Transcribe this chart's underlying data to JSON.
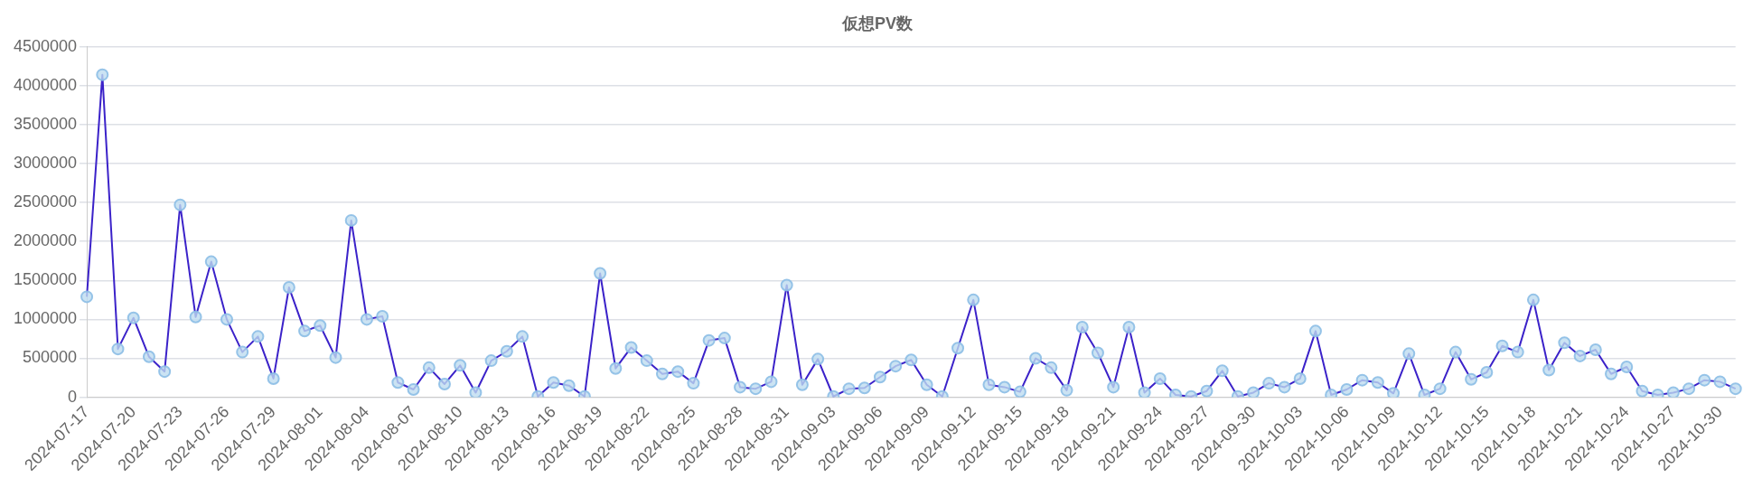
{
  "chart_data": {
    "type": "line",
    "title": "仮想PV数",
    "categories": [
      "2024-07-17",
      null,
      null,
      "2024-07-20",
      null,
      null,
      "2024-07-23",
      null,
      null,
      "2024-07-26",
      null,
      null,
      "2024-07-29",
      null,
      null,
      "2024-08-01",
      null,
      null,
      "2024-08-04",
      null,
      null,
      "2024-08-07",
      null,
      null,
      "2024-08-10",
      null,
      null,
      "2024-08-13",
      null,
      null,
      "2024-08-16",
      null,
      null,
      "2024-08-19",
      null,
      null,
      "2024-08-22",
      null,
      null,
      "2024-08-25",
      null,
      null,
      "2024-08-28",
      null,
      null,
      "2024-08-31",
      null,
      null,
      "2024-09-03",
      null,
      null,
      "2024-09-06",
      null,
      null,
      "2024-09-09",
      null,
      null,
      "2024-09-12",
      null,
      null,
      "2024-09-15",
      null,
      null,
      "2024-09-18",
      null,
      null,
      "2024-09-21",
      null,
      null,
      "2024-09-24",
      null,
      null,
      "2024-09-27",
      null,
      null,
      "2024-09-30",
      null,
      null,
      "2024-10-03",
      null,
      null,
      "2024-10-06",
      null,
      null,
      "2024-10-09",
      null,
      null,
      "2024-10-12",
      null,
      null,
      "2024-10-15",
      null,
      null,
      "2024-10-18",
      null,
      null,
      "2024-10-21",
      null,
      null,
      "2024-10-24",
      null,
      null,
      "2024-10-27",
      null,
      null,
      "2024-10-30",
      null
    ],
    "series": [
      {
        "color": "#3b22c9",
        "values": [
          1290000,
          4140000,
          620000,
          1020000,
          520000,
          330000,
          2470000,
          1030000,
          1740000,
          1000000,
          580000,
          780000,
          240000,
          1410000,
          850000,
          920000,
          510000,
          2270000,
          1000000,
          1040000,
          190000,
          100000,
          380000,
          170000,
          410000,
          60000,
          470000,
          590000,
          780000,
          10000,
          190000,
          150000,
          10000,
          1590000,
          370000,
          640000,
          470000,
          300000,
          330000,
          180000,
          730000,
          760000,
          130000,
          110000,
          200000,
          1440000,
          160000,
          490000,
          10000,
          110000,
          120000,
          260000,
          400000,
          480000,
          160000,
          10000,
          630000,
          1250000,
          160000,
          130000,
          70000,
          500000,
          380000,
          90000,
          900000,
          570000,
          130000,
          900000,
          60000,
          240000,
          30000,
          10000,
          80000,
          340000,
          10000,
          60000,
          180000,
          130000,
          240000,
          850000,
          30000,
          100000,
          220000,
          190000,
          50000,
          560000,
          30000,
          110000,
          580000,
          230000,
          320000,
          660000,
          580000,
          1250000,
          350000,
          700000,
          530000,
          610000,
          300000,
          390000,
          80000,
          30000,
          60000,
          110000,
          220000,
          200000,
          110000
        ]
      }
    ],
    "ylim": [
      0,
      4500000
    ],
    "yticks": [
      0,
      500000,
      1000000,
      1500000,
      2000000,
      2500000,
      3000000,
      3500000,
      4000000,
      4500000
    ],
    "grid": "y",
    "legend": false,
    "marker": "circle",
    "line_style": "solid"
  }
}
